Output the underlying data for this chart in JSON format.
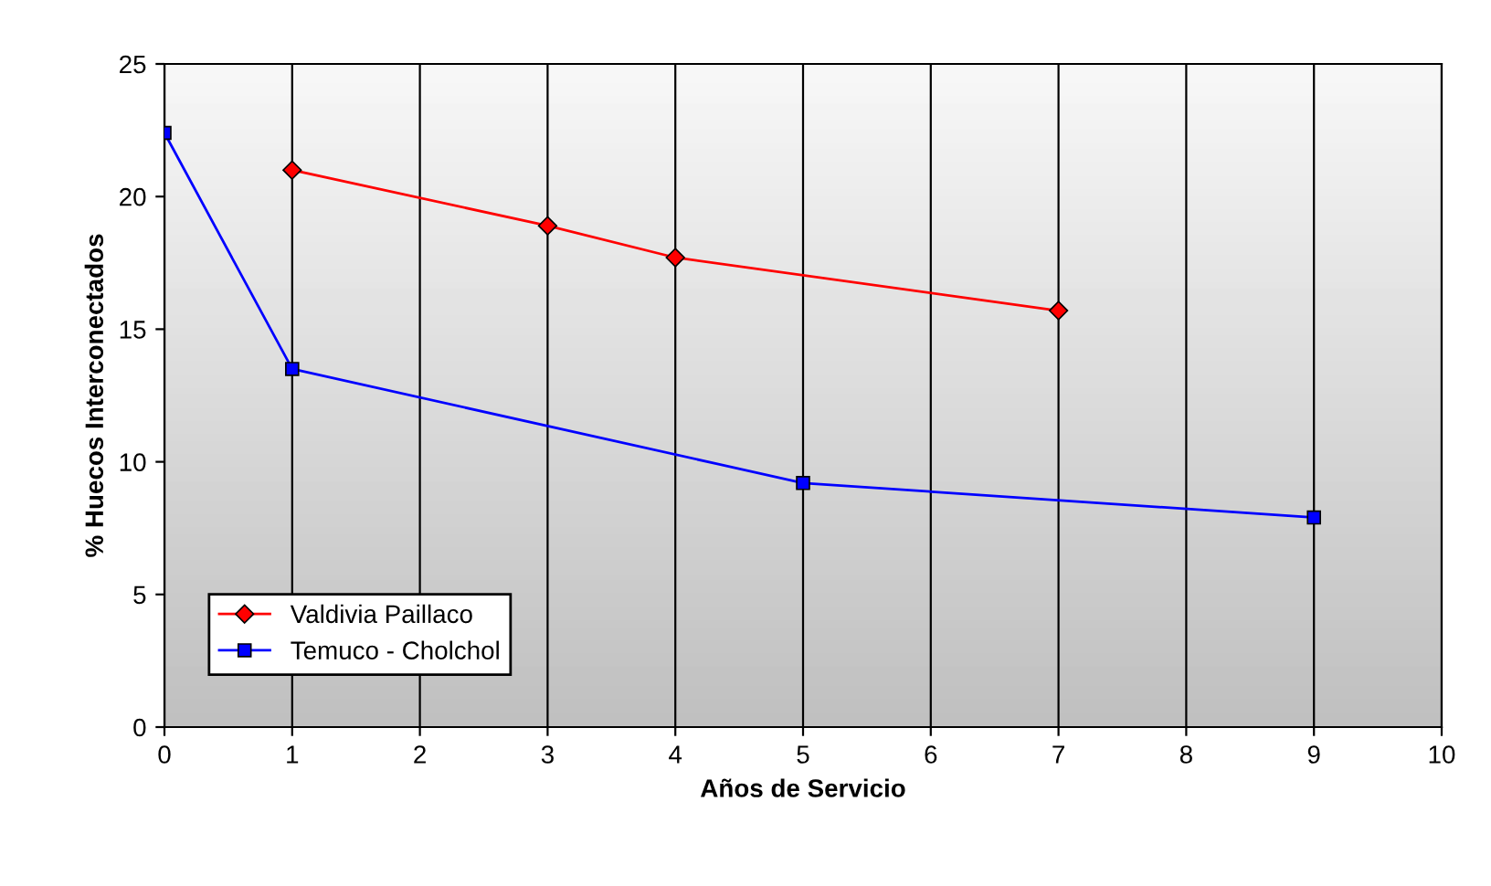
{
  "chart_data": {
    "type": "line",
    "xlabel": "Años de Servicio",
    "ylabel": "% Huecos Interconectados",
    "xlim": [
      0,
      10
    ],
    "xticks": [
      0,
      1,
      2,
      3,
      4,
      5,
      6,
      7,
      8,
      9,
      10
    ],
    "ylim": [
      0,
      25
    ],
    "yticks": [
      0,
      5,
      10,
      15,
      20,
      25
    ],
    "grid": "x",
    "legend": "bottom left",
    "series": [
      {
        "name": "Valdivia Paillaco",
        "color": "#ff0000",
        "marker": "diamond",
        "x": [
          1,
          3,
          4,
          7
        ],
        "values": [
          21.0,
          18.9,
          17.7,
          15.7
        ]
      },
      {
        "name": "Temuco - Cholchol",
        "color": "#0000ff",
        "marker": "square",
        "x": [
          0,
          1,
          5,
          9
        ],
        "values": [
          22.4,
          13.5,
          9.2,
          7.9
        ]
      }
    ]
  }
}
